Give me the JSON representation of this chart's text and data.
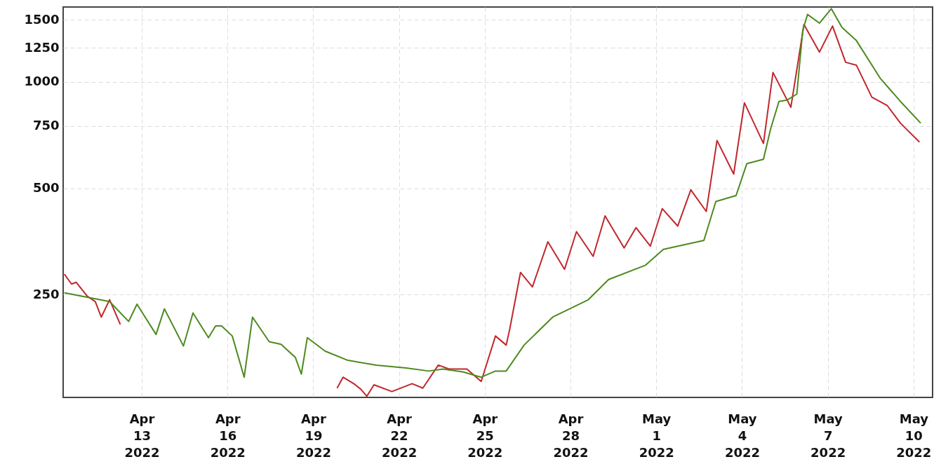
{
  "chart_data": {
    "type": "line",
    "log": "y",
    "grid": true,
    "line_style": "solid",
    "marker": "none",
    "xlim": [
      "2022-04-10T06:00",
      "2022-05-10T16:00"
    ],
    "ylim": [
      128,
      1630
    ],
    "xticks": [
      {
        "value": "2022-04-13",
        "label": "Apr 13 2022"
      },
      {
        "value": "2022-04-16",
        "label": "Apr 16 2022"
      },
      {
        "value": "2022-04-19",
        "label": "Apr 19 2022"
      },
      {
        "value": "2022-04-22",
        "label": "Apr 22 2022"
      },
      {
        "value": "2022-04-25",
        "label": "Apr 25 2022"
      },
      {
        "value": "2022-04-28",
        "label": "Apr 28 2022"
      },
      {
        "value": "2022-05-01",
        "label": "May 1 2022"
      },
      {
        "value": "2022-05-04",
        "label": "May 4 2022"
      },
      {
        "value": "2022-05-07",
        "label": "May 7 2022"
      },
      {
        "value": "2022-05-10",
        "label": "May 10 2022"
      }
    ],
    "yticks": [
      250,
      500,
      750,
      1000,
      1250,
      1500
    ],
    "series": [
      {
        "color": "#c0272d",
        "x": [
          "2022-04-10T07:00",
          "2022-04-10T13:00",
          "2022-04-10T17:00",
          "2022-04-11T02:00",
          "2022-04-11T09:00",
          "2022-04-11T14:00",
          "2022-04-11T21:00",
          "2022-04-12T06:00"
        ],
        "values": [
          286,
          268,
          271,
          248,
          239,
          216,
          242,
          206
        ]
      },
      {
        "color": "#c0272d",
        "x": [
          "2022-04-19T20:00",
          "2022-04-20T01:00",
          "2022-04-20T10:00",
          "2022-04-20T16:00",
          "2022-04-20T21:00",
          "2022-04-21T03:00",
          "2022-04-21T18:00",
          "2022-04-22T11:00",
          "2022-04-22T20:00",
          "2022-04-23T09:00",
          "2022-04-23T18:00",
          "2022-04-24T09:00",
          "2022-04-24T21:00",
          "2022-04-25T09:00",
          "2022-04-25T18:00",
          "2022-04-25T21:00",
          "2022-04-26T06:00",
          "2022-04-26T16:00",
          "2022-04-27T05:00",
          "2022-04-27T19:00",
          "2022-04-28T05:00",
          "2022-04-28T19:00",
          "2022-04-29T05:00",
          "2022-04-29T21:00",
          "2022-04-30T07:00",
          "2022-04-30T19:00",
          "2022-05-01T05:00",
          "2022-05-01T18:00",
          "2022-05-02T05:00",
          "2022-05-02T18:00",
          "2022-05-03T03:00",
          "2022-05-03T17:00",
          "2022-05-04T02:00",
          "2022-05-04T18:00",
          "2022-05-05T02:00",
          "2022-05-05T17:00",
          "2022-05-06T04:00",
          "2022-05-06T17:00",
          "2022-05-07T04:00",
          "2022-05-07T15:00",
          "2022-05-08T00:00",
          "2022-05-08T13:00",
          "2022-05-09T02:00",
          "2022-05-09T13:00",
          "2022-05-10T05:00"
        ],
        "values": [
          136,
          146,
          140,
          135,
          129,
          139,
          133,
          140,
          136,
          158,
          154,
          154,
          142,
          191,
          180,
          200,
          289,
          263,
          353,
          295,
          377,
          321,
          418,
          339,
          387,
          343,
          438,
          391,
          495,
          430,
          683,
          549,
          873,
          670,
          1064,
          848,
          1454,
          1215,
          1440,
          1137,
          1116,
          906,
          857,
          765,
          676
        ]
      },
      {
        "color": "#4e8a1e",
        "x": [
          "2022-04-10T07:00",
          "2022-04-11T02:00",
          "2022-04-11T21:00",
          "2022-04-12T13:00",
          "2022-04-12T20:00",
          "2022-04-13T12:00",
          "2022-04-13T19:00",
          "2022-04-14T11:00",
          "2022-04-14T19:00",
          "2022-04-15T08:00",
          "2022-04-15T14:00",
          "2022-04-15T19:00",
          "2022-04-16T04:00",
          "2022-04-16T14:00",
          "2022-04-16T21:00",
          "2022-04-17T11:00",
          "2022-04-17T21:00",
          "2022-04-18T09:00",
          "2022-04-18T14:00",
          "2022-04-18T19:00",
          "2022-04-19T10:00",
          "2022-04-20T05:00",
          "2022-04-21T05:00",
          "2022-04-22T06:00",
          "2022-04-23T01:00",
          "2022-04-23T13:00",
          "2022-04-24T06:00",
          "2022-04-24T21:00",
          "2022-04-25T09:00",
          "2022-04-25T18:00",
          "2022-04-26T09:00",
          "2022-04-27T09:00",
          "2022-04-28T15:00",
          "2022-04-29T08:00",
          "2022-04-30T15:00",
          "2022-05-01T06:00",
          "2022-05-02T16:00",
          "2022-05-03T02:00",
          "2022-05-03T19:00",
          "2022-05-04T04:00",
          "2022-05-04T18:00",
          "2022-05-05T00:00",
          "2022-05-05T07:00",
          "2022-05-05T14:00",
          "2022-05-05T22:00",
          "2022-05-06T03:00",
          "2022-05-06T07:00",
          "2022-05-06T17:00",
          "2022-05-07T03:00",
          "2022-05-07T12:00",
          "2022-05-08T00:00",
          "2022-05-08T20:00",
          "2022-05-09T13:00",
          "2022-05-10T06:00"
        ],
        "values": [
          253,
          246,
          239,
          210,
          235,
          193,
          228,
          179,
          222,
          189,
          204,
          204,
          191,
          146,
          216,
          184,
          181,
          166,
          149,
          189,
          173,
          163,
          158,
          155,
          152,
          154,
          151,
          146,
          152,
          152,
          180,
          216,
          242,
          276,
          303,
          336,
          356,
          459,
          477,
          587,
          604,
          736,
          881,
          889,
          924,
          1400,
          1553,
          1467,
          1612,
          1426,
          1310,
          1025,
          881,
          765
        ]
      }
    ]
  }
}
